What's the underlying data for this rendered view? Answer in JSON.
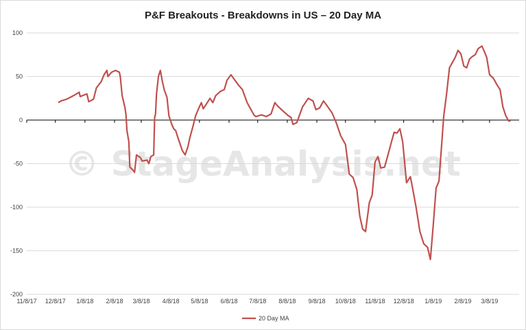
{
  "chart_data": {
    "type": "line",
    "title": "P&F Breakouts - Breakdowns in US – 20 Day MA",
    "xlabel": "",
    "ylabel": "",
    "ylim": [
      -200,
      100
    ],
    "y_ticks": [
      -200,
      -150,
      -100,
      -50,
      0,
      50,
      100
    ],
    "x_ticks": [
      "11/8/17",
      "12/8/17",
      "1/8/18",
      "2/8/18",
      "3/8/18",
      "4/8/18",
      "5/8/18",
      "6/8/18",
      "7/8/18",
      "8/8/18",
      "9/8/18",
      "10/8/18",
      "11/8/18",
      "12/8/18",
      "1/8/19",
      "2/8/19",
      "3/8/19"
    ],
    "grid": "horizontal",
    "legend": "bottom",
    "watermark": "© StageAnalysis.net",
    "series": [
      {
        "name": "20 Day MA",
        "color": "#c0504d",
        "points": [
          [
            "12/11/17",
            20
          ],
          [
            "12/14/17",
            22
          ],
          [
            "12/20/17",
            24
          ],
          [
            "12/27/17",
            28
          ],
          [
            "1/2/18",
            32
          ],
          [
            "1/3/18",
            27
          ],
          [
            "1/10/18",
            30
          ],
          [
            "1/12/18",
            21
          ],
          [
            "1/17/18",
            24
          ],
          [
            "1/20/18",
            37
          ],
          [
            "1/25/18",
            44
          ],
          [
            "1/28/18",
            52
          ],
          [
            "1/31/18",
            57
          ],
          [
            "2/1/18",
            50
          ],
          [
            "2/5/18",
            55
          ],
          [
            "2/9/18",
            57
          ],
          [
            "2/13/18",
            55
          ],
          [
            "2/14/18",
            50
          ],
          [
            "2/16/18",
            28
          ],
          [
            "2/19/18",
            14
          ],
          [
            "2/20/18",
            6
          ],
          [
            "2/21/18",
            -12
          ],
          [
            "2/23/18",
            -25
          ],
          [
            "2/24/18",
            -54
          ],
          [
            "2/27/18",
            -57
          ],
          [
            "3/1/18",
            -60
          ],
          [
            "3/3/18",
            -40
          ],
          [
            "3/7/18",
            -43
          ],
          [
            "3/9/18",
            -47
          ],
          [
            "3/14/18",
            -46
          ],
          [
            "3/16/18",
            -50
          ],
          [
            "3/18/18",
            -42
          ],
          [
            "3/21/18",
            -40
          ],
          [
            "3/22/18",
            3
          ],
          [
            "3/23/18",
            7
          ],
          [
            "3/24/18",
            30
          ],
          [
            "3/26/18",
            50
          ],
          [
            "3/28/18",
            57
          ],
          [
            "3/30/18",
            45
          ],
          [
            "4/1/18",
            35
          ],
          [
            "4/4/18",
            26
          ],
          [
            "4/6/18",
            5
          ],
          [
            "4/9/18",
            -5
          ],
          [
            "4/11/18",
            -10
          ],
          [
            "4/13/18",
            -12
          ],
          [
            "4/16/18",
            -22
          ],
          [
            "4/20/18",
            -35
          ],
          [
            "4/23/18",
            -40
          ],
          [
            "4/26/18",
            -30
          ],
          [
            "4/28/18",
            -20
          ],
          [
            "5/1/18",
            -8
          ],
          [
            "5/4/18",
            5
          ],
          [
            "5/7/18",
            13
          ],
          [
            "5/10/18",
            20
          ],
          [
            "5/12/18",
            13
          ],
          [
            "5/15/18",
            18
          ],
          [
            "5/19/18",
            25
          ],
          [
            "5/22/18",
            20
          ],
          [
            "5/25/18",
            28
          ],
          [
            "5/30/18",
            33
          ],
          [
            "6/3/18",
            35
          ],
          [
            "6/6/18",
            46
          ],
          [
            "6/10/18",
            52
          ],
          [
            "6/14/18",
            46
          ],
          [
            "6/18/18",
            40
          ],
          [
            "6/22/18",
            35
          ],
          [
            "6/27/18",
            20
          ],
          [
            "7/1/18",
            12
          ],
          [
            "7/4/18",
            6
          ],
          [
            "7/6/18",
            4
          ],
          [
            "7/12/18",
            6
          ],
          [
            "7/17/18",
            4
          ],
          [
            "7/22/18",
            7
          ],
          [
            "7/26/18",
            20
          ],
          [
            "7/29/18",
            16
          ],
          [
            "8/2/18",
            12
          ],
          [
            "8/6/18",
            8
          ],
          [
            "8/9/18",
            5
          ],
          [
            "8/12/18",
            3
          ],
          [
            "8/14/18",
            -5
          ],
          [
            "8/18/18",
            -3
          ],
          [
            "8/24/18",
            15
          ],
          [
            "8/30/18",
            25
          ],
          [
            "9/4/18",
            22
          ],
          [
            "9/7/18",
            12
          ],
          [
            "9/11/18",
            14
          ],
          [
            "9/15/18",
            22
          ],
          [
            "9/19/18",
            16
          ],
          [
            "9/24/18",
            8
          ],
          [
            "9/28/18",
            -2
          ],
          [
            "10/3/18",
            -18
          ],
          [
            "10/8/18",
            -28
          ],
          [
            "10/12/18",
            -62
          ],
          [
            "10/16/18",
            -66
          ],
          [
            "10/20/18",
            -80
          ],
          [
            "10/23/18",
            -110
          ],
          [
            "10/26/18",
            -125
          ],
          [
            "10/29/18",
            -128
          ],
          [
            "11/2/18",
            -95
          ],
          [
            "11/5/18",
            -86
          ],
          [
            "11/8/18",
            -48
          ],
          [
            "11/11/18",
            -42
          ],
          [
            "11/14/18",
            -55
          ],
          [
            "11/18/18",
            -54
          ],
          [
            "11/22/18",
            -38
          ],
          [
            "11/26/18",
            -22
          ],
          [
            "11/28/18",
            -14
          ],
          [
            "12/1/18",
            -15
          ],
          [
            "12/4/18",
            -10
          ],
          [
            "12/7/18",
            -25
          ],
          [
            "12/11/18",
            -72
          ],
          [
            "12/15/18",
            -65
          ],
          [
            "12/18/18",
            -82
          ],
          [
            "12/21/18",
            -100
          ],
          [
            "12/25/18",
            -128
          ],
          [
            "12/29/18",
            -142
          ],
          [
            "1/2/19",
            -146
          ],
          [
            "1/5/19",
            -160
          ],
          [
            "1/8/19",
            -120
          ],
          [
            "1/11/19",
            -78
          ],
          [
            "1/14/19",
            -70
          ],
          [
            "1/17/19",
            -25
          ],
          [
            "1/19/19",
            5
          ],
          [
            "1/22/19",
            30
          ],
          [
            "1/25/19",
            60
          ],
          [
            "1/28/19",
            66
          ],
          [
            "1/31/19",
            72
          ],
          [
            "2/3/19",
            80
          ],
          [
            "2/6/19",
            76
          ],
          [
            "2/9/19",
            62
          ],
          [
            "2/12/19",
            60
          ],
          [
            "2/15/19",
            70
          ],
          [
            "2/18/19",
            73
          ],
          [
            "2/21/19",
            75
          ],
          [
            "2/24/19",
            82
          ],
          [
            "2/28/19",
            85
          ],
          [
            "3/2/19",
            80
          ],
          [
            "3/5/19",
            72
          ],
          [
            "3/8/19",
            52
          ],
          [
            "3/12/19",
            48
          ],
          [
            "3/16/19",
            40
          ],
          [
            "3/19/19",
            35
          ],
          [
            "3/22/19",
            15
          ],
          [
            "3/25/19",
            5
          ],
          [
            "3/28/19",
            -1
          ],
          [
            "3/30/19",
            -1
          ]
        ]
      }
    ]
  }
}
